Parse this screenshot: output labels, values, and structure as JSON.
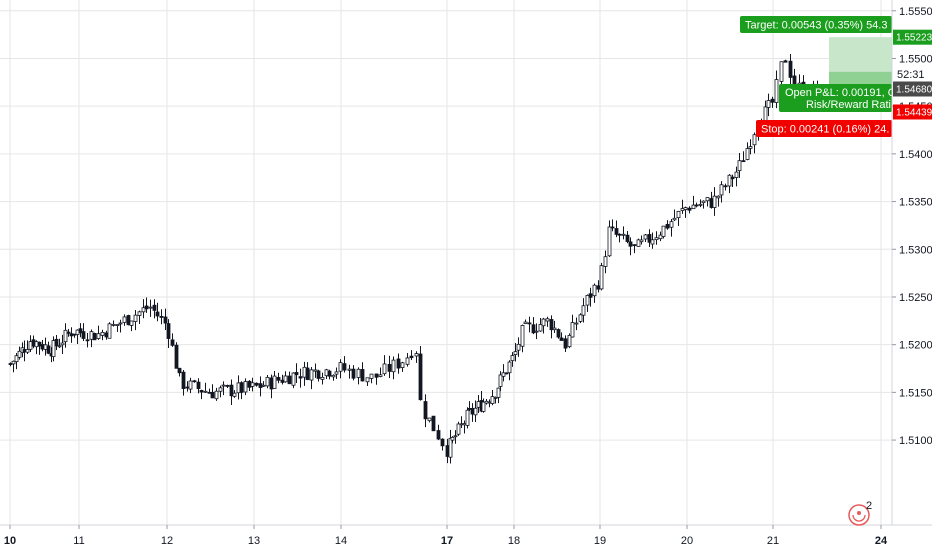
{
  "chart_data": {
    "type": "candlestick",
    "title": "",
    "xlabel": "",
    "ylabel": "",
    "ylim": [
      1.5055,
      1.5555
    ],
    "x_ticks": [
      {
        "label": "10",
        "bold": true,
        "pos": 0
      },
      {
        "label": "11",
        "bold": false,
        "pos": 1
      },
      {
        "label": "12",
        "bold": false,
        "pos": 2
      },
      {
        "label": "13",
        "bold": false,
        "pos": 3
      },
      {
        "label": "14",
        "bold": false,
        "pos": 4
      },
      {
        "label": "17",
        "bold": true,
        "pos": 5
      },
      {
        "label": "18",
        "bold": false,
        "pos": 6
      },
      {
        "label": "19",
        "bold": false,
        "pos": 7
      },
      {
        "label": "20",
        "bold": false,
        "pos": 8
      },
      {
        "label": "21",
        "bold": false,
        "pos": 9
      },
      {
        "label": "24",
        "bold": true,
        "pos": 10
      }
    ],
    "y_ticks": [
      "1.51000",
      "1.51500",
      "1.52000",
      "1.52500",
      "1.53000",
      "1.53500",
      "1.54000",
      "1.54500",
      "1.55000",
      "1.55500"
    ],
    "grid": true,
    "price_points": [
      [
        0,
        1.518
      ],
      [
        0.3,
        1.5205
      ],
      [
        0.6,
        1.5195
      ],
      [
        0.9,
        1.5215
      ],
      [
        1.2,
        1.521
      ],
      [
        1.5,
        1.5225
      ],
      [
        1.8,
        1.524
      ],
      [
        2.0,
        1.522
      ],
      [
        2.15,
        1.516
      ],
      [
        2.5,
        1.515
      ],
      [
        3.0,
        1.5155
      ],
      [
        3.5,
        1.517
      ],
      [
        4.0,
        1.5175
      ],
      [
        4.3,
        1.5165
      ],
      [
        4.6,
        1.5185
      ],
      [
        4.7,
        1.52
      ],
      [
        4.75,
        1.5135
      ],
      [
        5.0,
        1.509
      ],
      [
        5.3,
        1.5125
      ],
      [
        5.7,
        1.515
      ],
      [
        6.0,
        1.519
      ],
      [
        6.1,
        1.5215
      ],
      [
        6.4,
        1.5225
      ],
      [
        6.6,
        1.52
      ],
      [
        6.8,
        1.524
      ],
      [
        7.0,
        1.527
      ],
      [
        7.1,
        1.532
      ],
      [
        7.4,
        1.53
      ],
      [
        7.7,
        1.532
      ],
      [
        8.0,
        1.5345
      ],
      [
        8.3,
        1.535
      ],
      [
        8.6,
        1.5385
      ],
      [
        8.8,
        1.543
      ],
      [
        9.0,
        1.5455
      ],
      [
        9.1,
        1.5505
      ],
      [
        9.2,
        1.547
      ],
      [
        9.45,
        1.5465
      ],
      [
        9.6,
        1.5468
      ]
    ],
    "position": {
      "entry": 1.5468,
      "target": 1.55223,
      "stop": 1.54439,
      "target_label": "Target: 0.00543 (0.35%) 54.3",
      "pnl_label": "Open P&L: 0.00191, Q",
      "rr_label": "Risk/Reward Ratio",
      "stop_label": "Stop: 0.00241 (0.16%) 24."
    },
    "price_tags": {
      "target": "1.55223",
      "current": "1.54680",
      "stop": "1.54439",
      "countdown": "52:31"
    },
    "colors": {
      "target_fill": "#c8e6c9",
      "target_tag": "#1b9e1e",
      "stop_fill": "#f8d0d0",
      "stop_tag": "#f20000",
      "current_tag": "#4a4a4a",
      "candle": "#131722",
      "grid": "#e6e6e6"
    }
  },
  "badge": {
    "icon": "tv-logo-icon",
    "count": "2"
  }
}
